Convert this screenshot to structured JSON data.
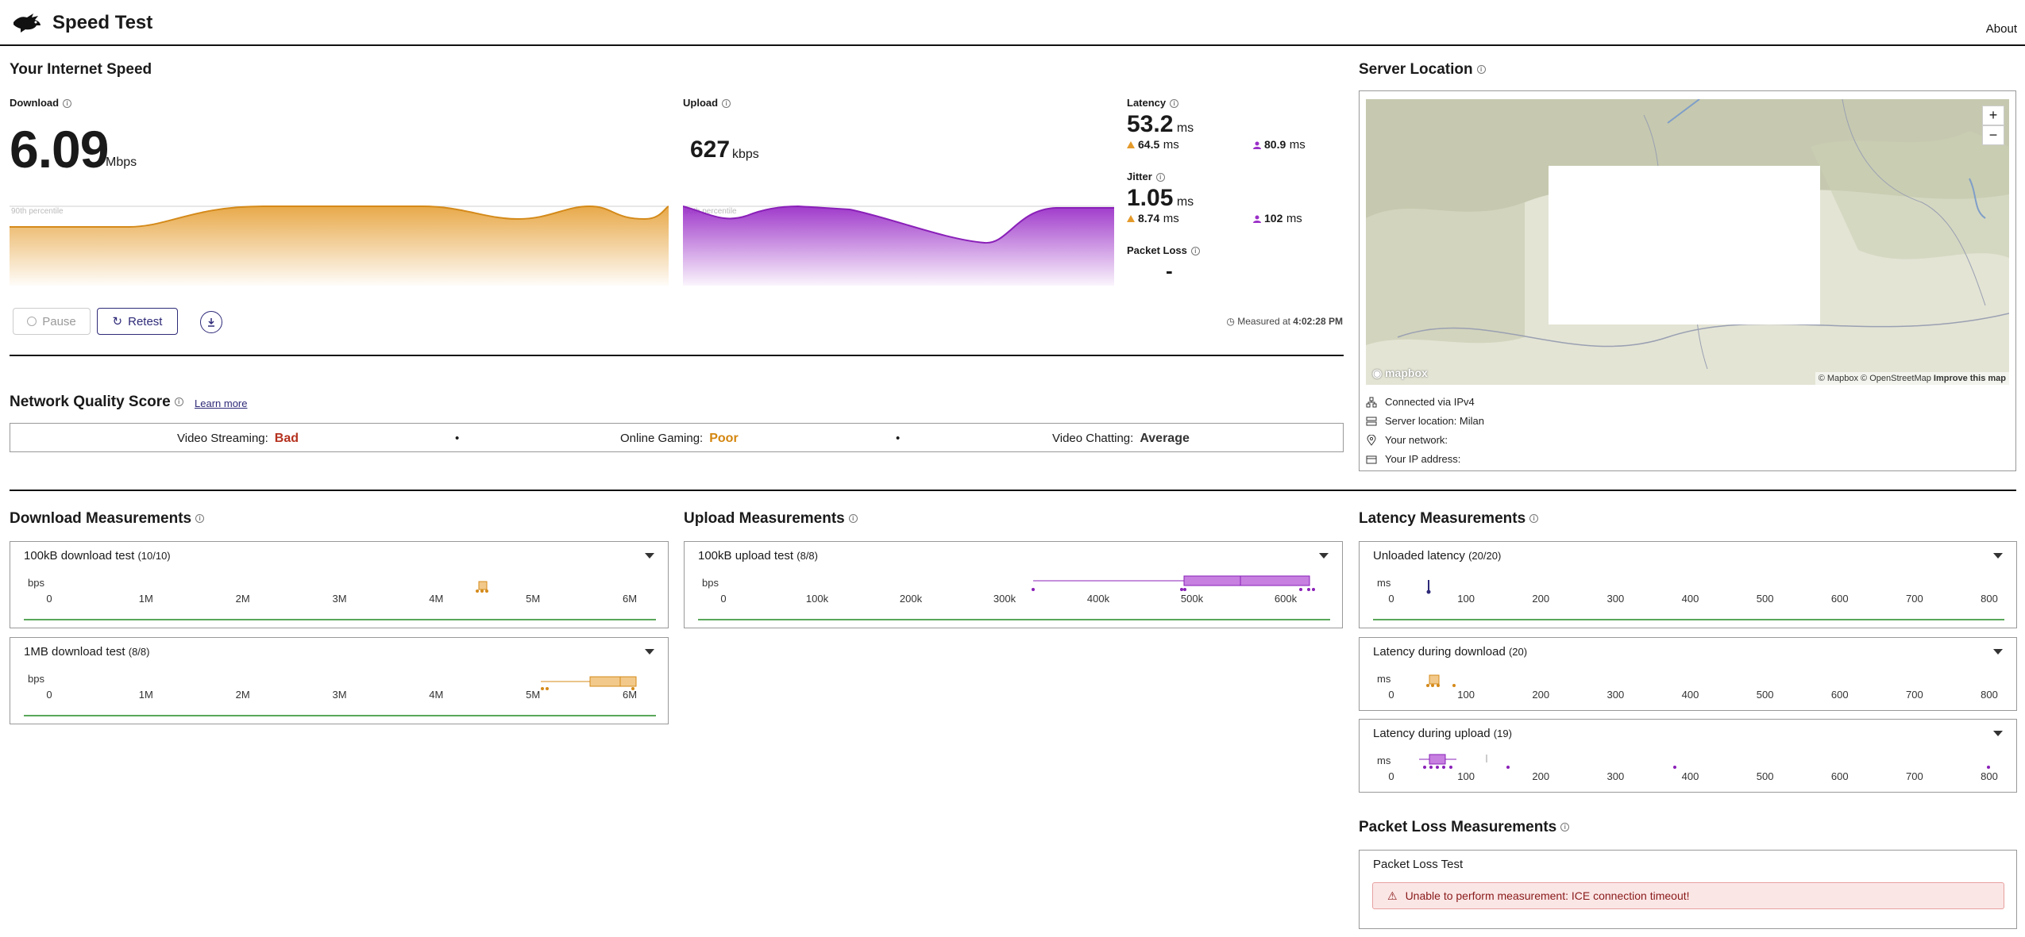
{
  "header": {
    "title": "Speed Test",
    "about": "About"
  },
  "speed": {
    "section_title": "Your Internet Speed",
    "download": {
      "label": "Download",
      "value": "6.09",
      "unit": "Mbps",
      "percentile_label": "90th percentile"
    },
    "upload": {
      "label": "Upload",
      "value": "627",
      "unit": "kbps",
      "percentile_label": "90th percentile"
    },
    "latency": {
      "label": "Latency",
      "value": "53.2",
      "unit": "ms",
      "down_value": "64.5",
      "up_value": "80.9",
      "sub_unit": "ms"
    },
    "jitter": {
      "label": "Jitter",
      "value": "1.05",
      "unit": "ms",
      "down_value": "8.74",
      "up_value": "102",
      "sub_unit": "ms"
    },
    "packet_loss": {
      "label": "Packet Loss",
      "value": "-"
    },
    "buttons": {
      "pause": "Pause",
      "retest": "Retest"
    },
    "measured_prefix": "Measured at",
    "measured_time": "4:02:28 PM",
    "colors": {
      "download": "#e49a2a",
      "upload": "#9b30c8",
      "accent": "#2e2a78"
    }
  },
  "nqs": {
    "title": "Network Quality Score",
    "learn_more": "Learn more",
    "items": [
      {
        "label": "Video Streaming:",
        "value": "Bad",
        "color": "#b5321f"
      },
      {
        "label": "Online Gaming:",
        "value": "Poor",
        "color": "#d4860f"
      },
      {
        "label": "Video Chatting:",
        "value": "Average",
        "color": "#333333"
      }
    ],
    "separator": "•"
  },
  "server": {
    "title": "Server Location",
    "zoom_in": "+",
    "zoom_out": "−",
    "mapbox_logo": "mapbox",
    "attribution": "© Mapbox © OpenStreetMap",
    "improve_map": "Improve this map",
    "rows": [
      {
        "label": "Connected via IPv4",
        "icon": "network-icon"
      },
      {
        "label": "Server location: Milan",
        "icon": "server-icon"
      },
      {
        "label": "Your network:",
        "icon": "location-pin-icon"
      },
      {
        "label": "Your IP address:",
        "icon": "card-icon"
      }
    ]
  },
  "download_measurements": {
    "title": "Download Measurements",
    "cards": [
      {
        "title": "100kB download test",
        "count": "(10/10)",
        "unit": "bps",
        "ticks": [
          "0",
          "1M",
          "2M",
          "3M",
          "4M",
          "5M",
          "6M"
        ]
      },
      {
        "title": "1MB download test",
        "count": "(8/8)",
        "unit": "bps",
        "ticks": [
          "0",
          "1M",
          "2M",
          "3M",
          "4M",
          "5M",
          "6M"
        ]
      }
    ]
  },
  "upload_measurements": {
    "title": "Upload Measurements",
    "cards": [
      {
        "title": "100kB upload test",
        "count": "(8/8)",
        "unit": "bps",
        "ticks": [
          "0",
          "100k",
          "200k",
          "300k",
          "400k",
          "500k",
          "600k"
        ]
      }
    ]
  },
  "latency_measurements": {
    "title": "Latency Measurements",
    "cards": [
      {
        "title": "Unloaded latency",
        "count": "(20/20)",
        "unit": "ms",
        "ticks": [
          "0",
          "100",
          "200",
          "300",
          "400",
          "500",
          "600",
          "700",
          "800"
        ]
      },
      {
        "title": "Latency during download",
        "count": "(20)",
        "unit": "ms",
        "ticks": [
          "0",
          "100",
          "200",
          "300",
          "400",
          "500",
          "600",
          "700",
          "800"
        ]
      },
      {
        "title": "Latency during upload",
        "count": "(19)",
        "unit": "ms",
        "ticks": [
          "0",
          "100",
          "200",
          "300",
          "400",
          "500",
          "600",
          "700",
          "800"
        ]
      }
    ]
  },
  "packet_loss_measurements": {
    "title": "Packet Loss Measurements",
    "card_title": "Packet Loss Test",
    "error": "Unable to perform measurement: ICE connection timeout!"
  }
}
